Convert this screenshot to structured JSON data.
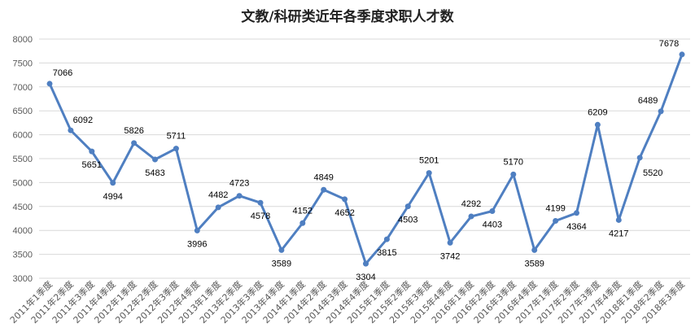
{
  "chart_data": {
    "type": "line",
    "title": "文教/科研类近年各季度求职人才数",
    "categories": [
      "2011年1季度",
      "2011年2季度",
      "2011年3季度",
      "2011年4季度",
      "2012年1季度",
      "2012年2季度",
      "2012年3季度",
      "2012年4季度",
      "2013年1季度",
      "2013年2季度",
      "2013年3季度",
      "2013年4季度",
      "2014年1季度",
      "2014年2季度",
      "2014年3季度",
      "2014年4季度",
      "2015年1季度",
      "2015年2季度",
      "2015年3季度",
      "2015年4季度",
      "2016年1季度",
      "2016年2季度",
      "2016年3季度",
      "2016年4季度",
      "2017年1季度",
      "2017年2季度",
      "2017年3季度",
      "2017年4季度",
      "2018年1季度",
      "2018年2季度",
      "2018年3季度"
    ],
    "values": [
      7066,
      6092,
      5651,
      4994,
      5826,
      5483,
      5711,
      3996,
      4482,
      4723,
      4578,
      3589,
      4152,
      4849,
      4652,
      3304,
      3815,
      4503,
      5201,
      3742,
      4292,
      4403,
      5170,
      3589,
      4199,
      4364,
      6209,
      4217,
      5520,
      6489,
      7678
    ],
    "yticks": [
      3000,
      3500,
      4000,
      4500,
      5000,
      5500,
      6000,
      6500,
      7000,
      7500,
      8000
    ],
    "ylim": [
      3000,
      8000
    ],
    "grid": true,
    "line_color": "#4f7fc1"
  }
}
